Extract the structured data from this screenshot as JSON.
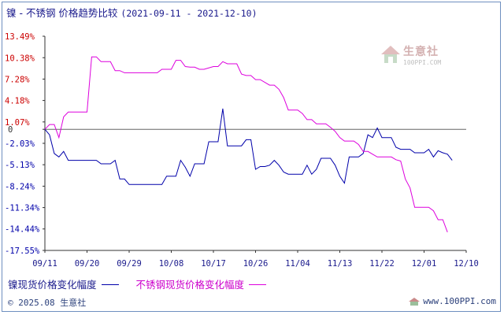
{
  "title": {
    "main": "镍 - 不锈钢 价格趋势比较",
    "range": "(2021-09-11 - 2021-12-10)"
  },
  "watermark": {
    "text": "生意社",
    "url": "100PPI.COM"
  },
  "footer": {
    "copyright": "© 2025.08 生意社",
    "site": "www.100PPI.com"
  },
  "colors": {
    "nickel": "#0000aa",
    "stainless": "#dd00dd",
    "axis": "#333333",
    "zero": "#666666"
  },
  "chart_data": {
    "type": "line",
    "title": "镍 - 不锈钢 价格趋势比较",
    "xlabel": "",
    "ylabel": "",
    "x_tick_labels": [
      "09/11",
      "09/20",
      "09/29",
      "10/08",
      "10/17",
      "10/26",
      "11/04",
      "11/13",
      "11/22",
      "12/01",
      "12/10"
    ],
    "y_tick_labels": [
      "13.49%",
      "10.38%",
      "7.28%",
      "4.18%",
      "1.07%",
      "0",
      "-2.03%",
      "-5.13%",
      "-8.24%",
      "-11.34%",
      "-14.44%",
      "-17.55%"
    ],
    "y_ticks": [
      13.49,
      10.38,
      7.28,
      4.18,
      1.07,
      0,
      -2.03,
      -5.13,
      -8.24,
      -11.34,
      -14.44,
      -17.55
    ],
    "ylim": [
      -17.55,
      13.49
    ],
    "x_range_days": [
      0,
      90
    ],
    "legend_position": "bottom",
    "series": [
      {
        "name": "镍现货价格变化幅度",
        "color": "#0000aa",
        "points": [
          [
            0,
            0
          ],
          [
            1,
            -0.8
          ],
          [
            2,
            -3.5
          ],
          [
            3,
            -4
          ],
          [
            4,
            -3.2
          ],
          [
            5,
            -4.5
          ],
          [
            6,
            -4.5
          ],
          [
            8,
            -4.5
          ],
          [
            10,
            -4.5
          ],
          [
            11,
            -4.5
          ],
          [
            12,
            -5
          ],
          [
            14,
            -5
          ],
          [
            15,
            -4.5
          ],
          [
            16,
            -7.2
          ],
          [
            17,
            -7.2
          ],
          [
            18,
            -8
          ],
          [
            20,
            -8
          ],
          [
            24,
            -8
          ],
          [
            25,
            -8
          ],
          [
            26,
            -6.8
          ],
          [
            27,
            -6.8
          ],
          [
            28,
            -6.8
          ],
          [
            29,
            -4.5
          ],
          [
            30,
            -5.5
          ],
          [
            31,
            -6.8
          ],
          [
            32,
            -5
          ],
          [
            33,
            -5
          ],
          [
            34,
            -5
          ],
          [
            35,
            -1.8
          ],
          [
            36,
            -1.8
          ],
          [
            37,
            -1.8
          ],
          [
            38,
            3
          ],
          [
            39,
            -2.4
          ],
          [
            40,
            -2.4
          ],
          [
            41,
            -2.4
          ],
          [
            42,
            -2.4
          ],
          [
            43,
            -1.5
          ],
          [
            44,
            -1.5
          ],
          [
            45,
            -5.8
          ],
          [
            46,
            -5.4
          ],
          [
            47,
            -5.4
          ],
          [
            48,
            -5.2
          ],
          [
            49,
            -4.5
          ],
          [
            50,
            -5.2
          ],
          [
            51,
            -6.2
          ],
          [
            52,
            -6.5
          ],
          [
            53,
            -6.5
          ],
          [
            54,
            -6.5
          ],
          [
            55,
            -6.5
          ],
          [
            56,
            -5.2
          ],
          [
            57,
            -6.5
          ],
          [
            58,
            -5.8
          ],
          [
            59,
            -4.2
          ],
          [
            60,
            -4.2
          ],
          [
            61,
            -4.2
          ],
          [
            62,
            -5.2
          ],
          [
            63,
            -6.8
          ],
          [
            64,
            -7.8
          ],
          [
            65,
            -4
          ],
          [
            66,
            -4
          ],
          [
            67,
            -4
          ],
          [
            68,
            -3.5
          ],
          [
            69,
            -0.8
          ],
          [
            70,
            -1.2
          ],
          [
            71,
            0.2
          ],
          [
            72,
            -1.2
          ],
          [
            73,
            -1.2
          ],
          [
            74,
            -1.2
          ],
          [
            75,
            -2.6
          ],
          [
            76,
            -2.9
          ],
          [
            77,
            -2.9
          ],
          [
            78,
            -2.9
          ],
          [
            79,
            -3.4
          ],
          [
            80,
            -3.4
          ],
          [
            81,
            -3.4
          ],
          [
            82,
            -2.9
          ],
          [
            83,
            -4
          ],
          [
            84,
            -3.1
          ],
          [
            85,
            -3.4
          ],
          [
            86,
            -3.6
          ],
          [
            87,
            -4.5
          ]
        ]
      },
      {
        "name": "不锈钢现货价格变化幅度",
        "color": "#dd00dd",
        "points": [
          [
            0,
            0
          ],
          [
            1,
            0.7
          ],
          [
            2,
            0.7
          ],
          [
            3,
            -1.2
          ],
          [
            4,
            1.8
          ],
          [
            5,
            2.5
          ],
          [
            6,
            2.5
          ],
          [
            8,
            2.5
          ],
          [
            9,
            2.5
          ],
          [
            10,
            10.5
          ],
          [
            11,
            10.5
          ],
          [
            12,
            9.8
          ],
          [
            14,
            9.8
          ],
          [
            15,
            8.5
          ],
          [
            16,
            8.5
          ],
          [
            17,
            8.2
          ],
          [
            18,
            8.2
          ],
          [
            24,
            8.2
          ],
          [
            25,
            8.7
          ],
          [
            26,
            8.7
          ],
          [
            27,
            8.7
          ],
          [
            28,
            10
          ],
          [
            29,
            10
          ],
          [
            30,
            9.1
          ],
          [
            31,
            9
          ],
          [
            32,
            9
          ],
          [
            33,
            8.7
          ],
          [
            34,
            8.7
          ],
          [
            36,
            9.1
          ],
          [
            37,
            9.1
          ],
          [
            38,
            9.8
          ],
          [
            39,
            9.5
          ],
          [
            41,
            9.5
          ],
          [
            42,
            8
          ],
          [
            43,
            7.8
          ],
          [
            44,
            7.8
          ],
          [
            45,
            7.2
          ],
          [
            46,
            7.2
          ],
          [
            48,
            6.4
          ],
          [
            49,
            6.4
          ],
          [
            50,
            5.8
          ],
          [
            51,
            4.6
          ],
          [
            52,
            2.8
          ],
          [
            53,
            2.8
          ],
          [
            54,
            2.8
          ],
          [
            55,
            2.3
          ],
          [
            56,
            1.4
          ],
          [
            57,
            1.4
          ],
          [
            58,
            0.8
          ],
          [
            59,
            0.8
          ],
          [
            60,
            0.8
          ],
          [
            61,
            0.3
          ],
          [
            62,
            -0.3
          ],
          [
            63,
            -1.2
          ],
          [
            64,
            -1.7
          ],
          [
            65,
            -1.7
          ],
          [
            66,
            -1.7
          ],
          [
            67,
            -2.2
          ],
          [
            68,
            -3.2
          ],
          [
            69,
            -3.2
          ],
          [
            70,
            -3.6
          ],
          [
            71,
            -4
          ],
          [
            72,
            -4
          ],
          [
            73,
            -4
          ],
          [
            74,
            -4
          ],
          [
            75,
            -4.4
          ],
          [
            76,
            -4.6
          ],
          [
            77,
            -7.2
          ],
          [
            78,
            -8.5
          ],
          [
            79,
            -11.3
          ],
          [
            80,
            -11.3
          ],
          [
            81,
            -11.3
          ],
          [
            82,
            -11.3
          ],
          [
            83,
            -11.8
          ],
          [
            84,
            -13.1
          ],
          [
            85,
            -13.1
          ],
          [
            86,
            -14.9
          ]
        ]
      }
    ]
  }
}
